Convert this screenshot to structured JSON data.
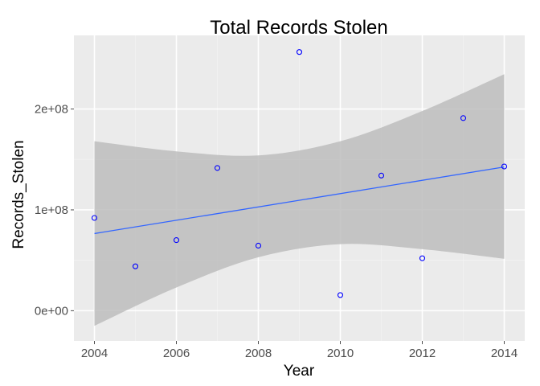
{
  "chart_data": {
    "type": "scatter",
    "title": "Total Records Stolen",
    "xlabel": "Year",
    "ylabel": "Records_Stolen",
    "xlim": [
      2003.5,
      2014.5
    ],
    "ylim": [
      -30000000,
      273000000
    ],
    "x_ticks": [
      2004,
      2006,
      2008,
      2010,
      2012,
      2014
    ],
    "x_tick_labels": [
      "2004",
      "2006",
      "2008",
      "2010",
      "2012",
      "2014"
    ],
    "y_ticks": [
      0,
      100000000,
      200000000
    ],
    "y_tick_labels": [
      "0e+00",
      "1e+08",
      "2e+08"
    ],
    "grid": true,
    "points": {
      "x": [
        2004,
        2005,
        2006,
        2007,
        2008,
        2009,
        2010,
        2011,
        2012,
        2013,
        2014
      ],
      "y": [
        92000000,
        44000000,
        70000000,
        141500000,
        64500000,
        256500000,
        15500000,
        134000000,
        52000000,
        191000000,
        143000000
      ]
    },
    "fit_line": {
      "type": "linear",
      "x": [
        2004,
        2014
      ],
      "y": [
        76500000,
        142500000
      ]
    },
    "confidence_band": {
      "x": [
        2004,
        2006,
        2008,
        2010,
        2012,
        2014
      ],
      "lower": [
        -15000000,
        23000000,
        53000000,
        66000000,
        61000000,
        51500000
      ],
      "upper": [
        168000000,
        158000000,
        154000000,
        168000000,
        198000000,
        234500000
      ]
    },
    "colors": {
      "panel_background": "#ebebeb",
      "grid_major": "#ffffff",
      "grid_minor": "#f3f3f3",
      "points": "#0000ff",
      "fit_line": "#3366ff",
      "band_fill": "#bdbdbd"
    }
  }
}
